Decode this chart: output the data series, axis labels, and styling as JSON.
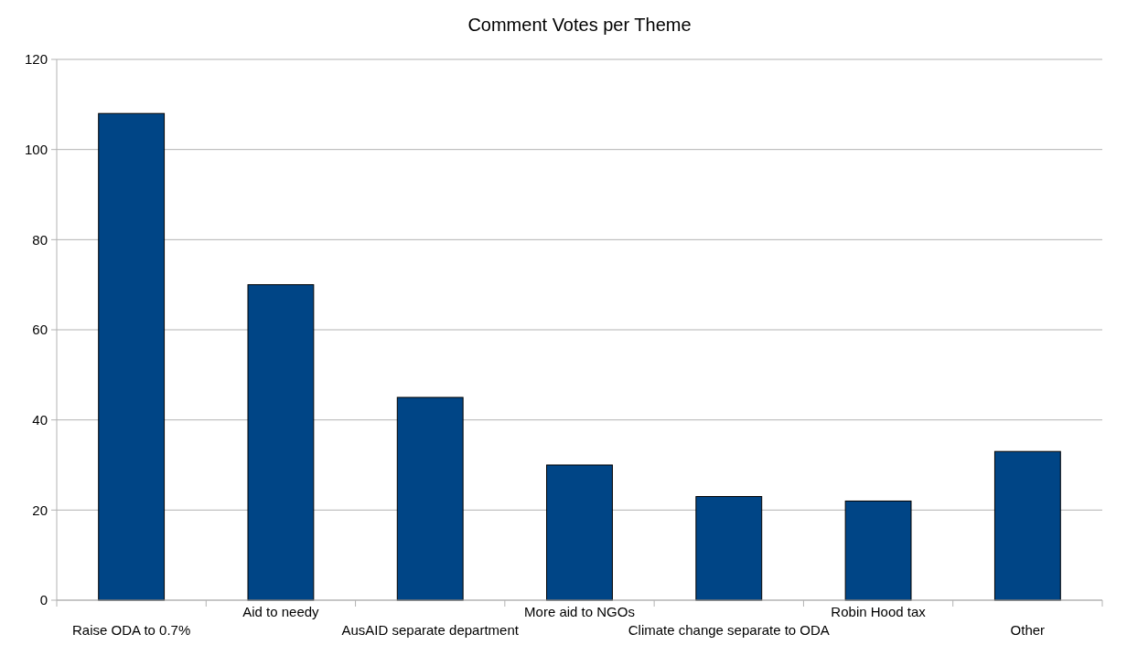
{
  "chart_data": {
    "type": "bar",
    "title": "Comment Votes per Theme",
    "categories": [
      "Raise ODA to 0.7%",
      "Aid to needy",
      "AusAID separate department",
      "More aid to NGOs",
      "Climate change separate to ODA",
      "Robin Hood tax",
      "Other"
    ],
    "values": [
      108,
      70,
      45,
      30,
      23,
      22,
      33
    ],
    "color": "#004586",
    "ylim": [
      0,
      120
    ],
    "yticks": [
      0,
      20,
      40,
      60,
      80,
      100,
      120
    ],
    "grid": "y"
  }
}
